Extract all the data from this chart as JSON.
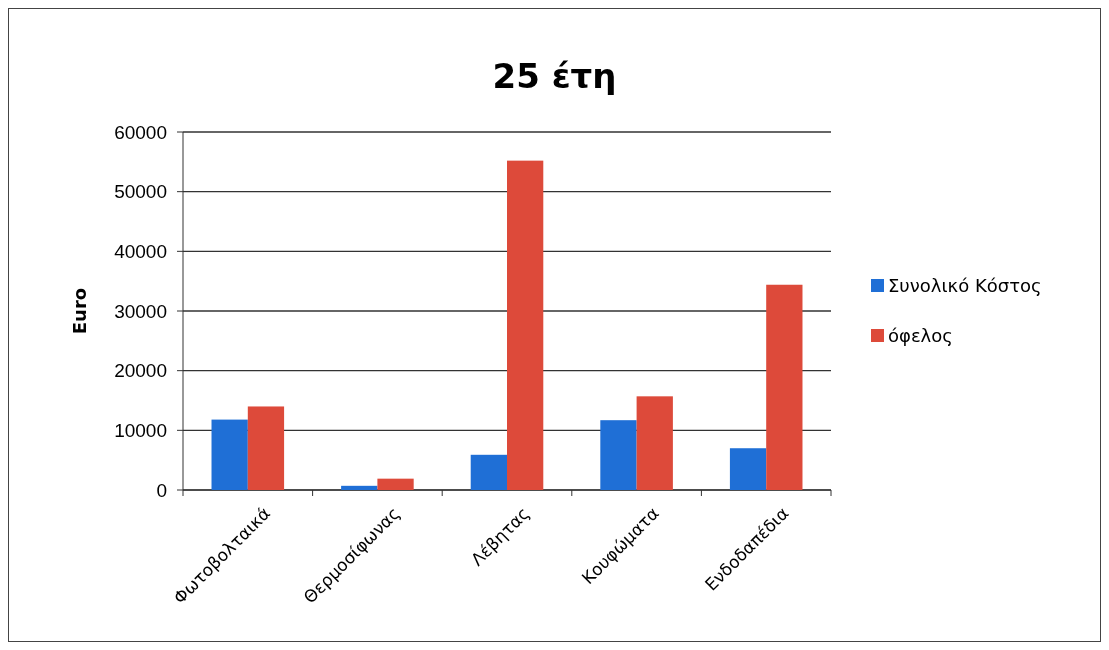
{
  "chart_data": {
    "type": "bar",
    "title": "25 έτη",
    "ylabel": "Euro",
    "categories": [
      "Φωτοβολταικά",
      "Θερμοσίφωνας",
      "Λέβητας",
      "Κουφώματα",
      "Ενδοδαπέδια"
    ],
    "series": [
      {
        "name": "Συνολικό Κόστος",
        "color": "#1f6fd6",
        "values": [
          11800,
          700,
          5900,
          11700,
          7000
        ]
      },
      {
        "name": "όφελος",
        "color": "#dd4a3a",
        "values": [
          14000,
          1900,
          55200,
          15700,
          34400
        ]
      }
    ],
    "ylim": [
      0,
      60000
    ],
    "yticks": [
      0,
      10000,
      20000,
      30000,
      40000,
      50000,
      60000
    ],
    "grid": "y",
    "legend": "right"
  }
}
